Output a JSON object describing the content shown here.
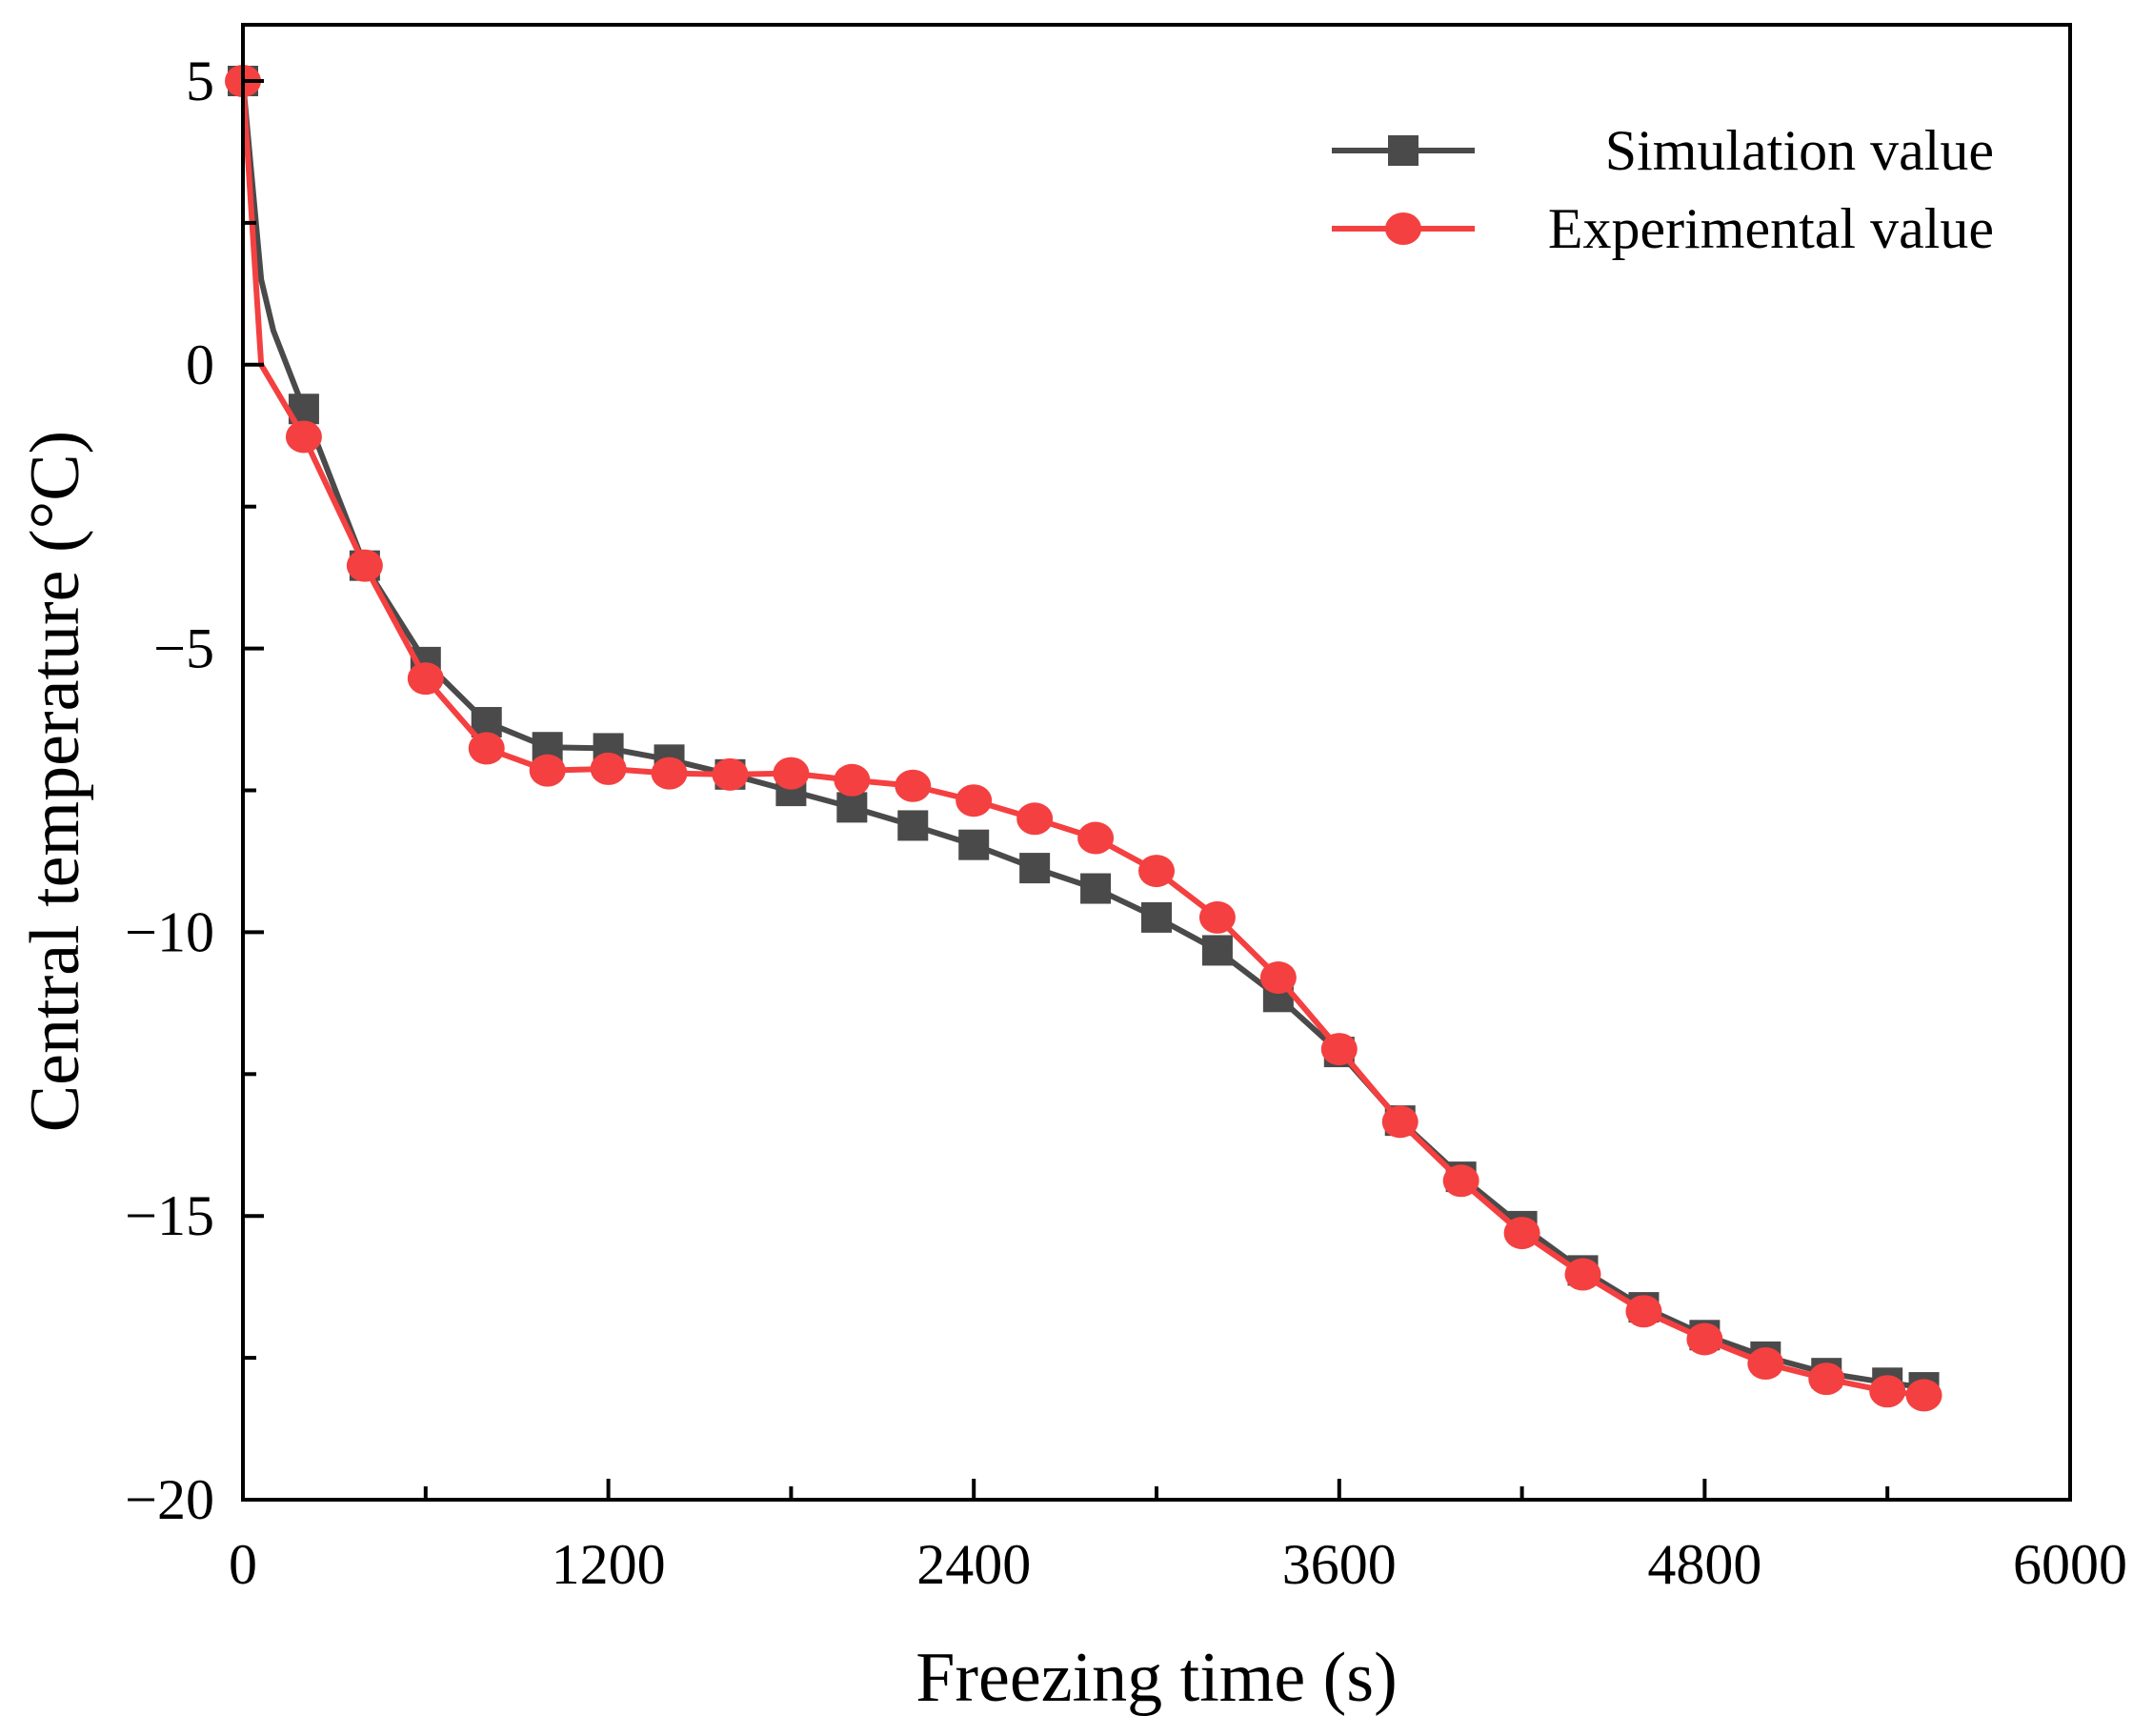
{
  "chart_data": {
    "type": "line",
    "title": "",
    "xlabel": "Freezing time (s)",
    "ylabel": "Central temperature (°C)",
    "xlim": [
      0,
      6000
    ],
    "ylim": [
      -20,
      6
    ],
    "xticks": [
      0,
      1200,
      2400,
      3600,
      4800,
      6000
    ],
    "xtick_labels": [
      "0",
      "1200",
      "2400",
      "3600",
      "4800",
      "6000"
    ],
    "yticks": [
      5,
      0,
      -5,
      -10,
      -15,
      -20
    ],
    "ytick_labels": [
      "5",
      "0",
      "−5",
      "−10",
      "−15",
      "−20"
    ],
    "grid": false,
    "legend_placement": "top-right",
    "series": [
      {
        "name": "Simulation value",
        "color": "#4a4a4a",
        "marker": "square",
        "line_only_points": [
          [
            60,
            1.5
          ],
          [
            100,
            0.6
          ]
        ],
        "x": [
          0,
          200,
          400,
          600,
          800,
          1000,
          1200,
          1400,
          1600,
          1800,
          2000,
          2200,
          2400,
          2600,
          2800,
          3000,
          3200,
          3400,
          3600,
          3800,
          4000,
          4200,
          4400,
          4600,
          4800,
          5000,
          5200,
          5400,
          5520
        ],
        "values": [
          5,
          -0.78,
          -3.54,
          -5.24,
          -6.3,
          -6.74,
          -6.76,
          -6.96,
          -7.22,
          -7.51,
          -7.8,
          -8.12,
          -8.46,
          -8.87,
          -9.23,
          -9.74,
          -10.32,
          -11.14,
          -12.11,
          -13.32,
          -14.31,
          -15.18,
          -15.96,
          -16.61,
          -17.1,
          -17.48,
          -17.77,
          -17.94,
          -18.02
        ]
      },
      {
        "name": "Experimental value",
        "color": "#f44040",
        "marker": "circle",
        "line_only_points": [
          [
            60,
            0
          ]
        ],
        "x": [
          0,
          200,
          400,
          600,
          800,
          1000,
          1200,
          1400,
          1600,
          1800,
          2000,
          2200,
          2400,
          2600,
          2800,
          3000,
          3200,
          3400,
          3600,
          3800,
          4000,
          4200,
          4400,
          4600,
          4800,
          5000,
          5200,
          5400,
          5520
        ],
        "values": [
          5,
          -1.27,
          -3.54,
          -5.53,
          -6.76,
          -7.15,
          -7.12,
          -7.2,
          -7.22,
          -7.2,
          -7.32,
          -7.42,
          -7.68,
          -8.0,
          -8.34,
          -8.92,
          -9.74,
          -10.8,
          -12.06,
          -13.34,
          -14.38,
          -15.3,
          -16.03,
          -16.68,
          -17.17,
          -17.6,
          -17.87,
          -18.09,
          -18.16
        ]
      }
    ]
  }
}
